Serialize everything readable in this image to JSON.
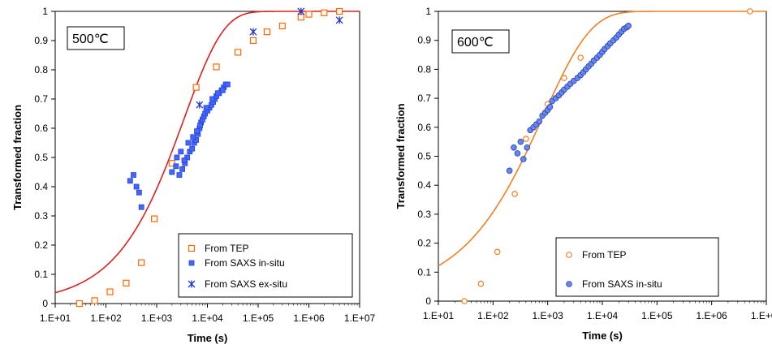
{
  "chart_data": [
    {
      "type": "scatter",
      "temperature_label": "500℃",
      "xlabel": "Time (s)",
      "ylabel": "Transformed fraction",
      "xscale": "log",
      "xlim": [
        10,
        10000000
      ],
      "ylim": [
        0,
        1
      ],
      "xticks": [
        10,
        100,
        1000,
        10000,
        100000,
        1000000,
        10000000
      ],
      "xtick_labels": [
        "1.E+01",
        "1.E+02",
        "1.E+03",
        "1.E+04",
        "1.E+05",
        "1.E+06",
        "1.E+07"
      ],
      "yticks": [
        0,
        0.1,
        0.2,
        0.3,
        0.4,
        0.5,
        0.6,
        0.7,
        0.8,
        0.9,
        1
      ],
      "ytick_labels": [
        "0",
        "0.1",
        "0.2",
        "0.3",
        "0.4",
        "0.5",
        "0.6",
        "0.7",
        "0.8",
        "0.9",
        "1"
      ],
      "grid": false,
      "legend_position": "bottom-right",
      "fit_curve": {
        "color": "#dd1f1f",
        "t50": 1800,
        "n": 0.56,
        "y0": 0.0
      },
      "series": [
        {
          "name": "From TEP",
          "marker": "square-open",
          "color": "#ff6600",
          "x": [
            30,
            60,
            120,
            250,
            500,
            900,
            2000,
            6000,
            15000,
            40000,
            80000,
            150000,
            300000,
            700000,
            1000000,
            2000000,
            4000000
          ],
          "y": [
            0.0,
            0.01,
            0.04,
            0.07,
            0.14,
            0.29,
            0.48,
            0.74,
            0.81,
            0.86,
            0.9,
            0.93,
            0.95,
            0.98,
            0.99,
            0.995,
            1.0
          ]
        },
        {
          "name": "From SAXS in-situ",
          "marker": "square-filled",
          "color": "#4466ff",
          "x": [
            300,
            350,
            400,
            450,
            500,
            2000,
            2400,
            2800,
            3200,
            3600,
            4000,
            4500,
            5000,
            5500,
            6000,
            6500,
            7000,
            7500,
            8000,
            8500,
            9000,
            10000,
            11000,
            12000,
            13000,
            14000,
            15000,
            17000,
            19000,
            21000,
            23000,
            25000,
            2500,
            3000,
            3500,
            4200,
            5200,
            6200,
            7200,
            9500,
            12500,
            16000,
            20000
          ],
          "y": [
            0.42,
            0.44,
            0.4,
            0.38,
            0.33,
            0.45,
            0.47,
            0.44,
            0.46,
            0.48,
            0.5,
            0.52,
            0.53,
            0.55,
            0.56,
            0.58,
            0.6,
            0.62,
            0.63,
            0.64,
            0.65,
            0.66,
            0.67,
            0.68,
            0.69,
            0.7,
            0.71,
            0.72,
            0.73,
            0.74,
            0.75,
            0.75,
            0.5,
            0.52,
            0.49,
            0.55,
            0.57,
            0.59,
            0.61,
            0.67,
            0.7,
            0.72,
            0.73
          ]
        },
        {
          "name": "From SAXS ex-situ",
          "marker": "asterisk",
          "color": "#2233cc",
          "x": [
            7000,
            80000,
            700000,
            4000000
          ],
          "y": [
            0.68,
            0.93,
            1.0,
            0.97
          ]
        }
      ]
    },
    {
      "type": "scatter",
      "temperature_label": "600℃",
      "xlabel": "Time (s)",
      "ylabel": "Transformed fraction",
      "xscale": "log",
      "xlim": [
        10,
        10000000
      ],
      "ylim": [
        0,
        1
      ],
      "xticks": [
        10,
        100,
        1000,
        10000,
        100000,
        1000000,
        10000000
      ],
      "xtick_labels": [
        "1.E+01",
        "1.E+02",
        "1.E+03",
        "1.E+04",
        "1.E+05",
        "1.E+06",
        "1.E+07"
      ],
      "yticks": [
        0,
        0.1,
        0.2,
        0.3,
        0.4,
        0.5,
        0.6,
        0.7,
        0.8,
        0.9,
        1
      ],
      "ytick_labels": [
        "0",
        "0.1",
        "0.2",
        "0.3",
        "0.4",
        "0.5",
        "0.6",
        "0.7",
        "0.8",
        "0.9",
        "1"
      ],
      "grid": false,
      "legend_position": "bottom-right",
      "fit_curve": {
        "color": "#f07f20",
        "t50": 400,
        "n": 0.5,
        "y0": 0.02
      },
      "series": [
        {
          "name": "From TEP",
          "marker": "circle-open",
          "color": "#f07f20",
          "x": [
            30,
            60,
            120,
            250,
            400,
            1000,
            2000,
            4000,
            5000000
          ],
          "y": [
            0.0,
            0.06,
            0.17,
            0.37,
            0.56,
            0.68,
            0.77,
            0.84,
            1.0
          ]
        },
        {
          "name": "From SAXS in-situ",
          "marker": "circle-filled",
          "color": "#6688ee",
          "x": [
            200,
            240,
            280,
            320,
            360,
            420,
            480,
            550,
            620,
            700,
            800,
            900,
            1000,
            1100,
            1200,
            1400,
            1600,
            1800,
            2000,
            2300,
            2600,
            3000,
            3500,
            4000,
            4500,
            5000,
            5600,
            6300,
            7000,
            8000,
            9000,
            10000,
            11000,
            12500,
            14000,
            16000,
            18000,
            20000,
            22500,
            25000,
            28000,
            30000
          ],
          "y": [
            0.45,
            0.53,
            0.51,
            0.55,
            0.49,
            0.53,
            0.59,
            0.6,
            0.61,
            0.62,
            0.64,
            0.65,
            0.66,
            0.67,
            0.69,
            0.7,
            0.71,
            0.72,
            0.73,
            0.74,
            0.75,
            0.76,
            0.77,
            0.78,
            0.79,
            0.8,
            0.81,
            0.82,
            0.83,
            0.84,
            0.85,
            0.86,
            0.87,
            0.88,
            0.89,
            0.9,
            0.91,
            0.92,
            0.93,
            0.94,
            0.945,
            0.95
          ]
        }
      ]
    }
  ]
}
